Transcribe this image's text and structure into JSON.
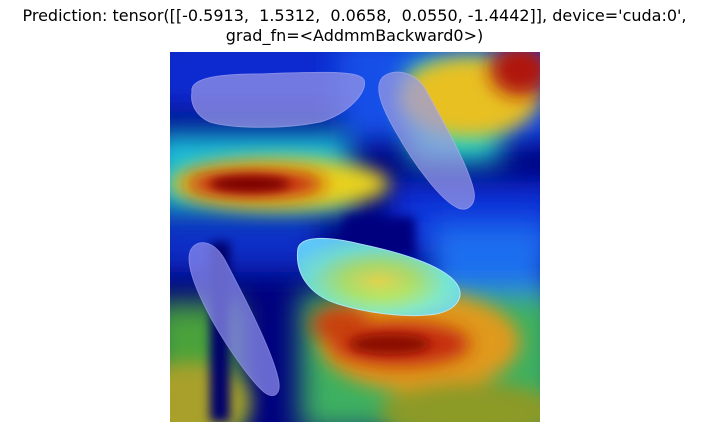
{
  "figure": {
    "title_line1": "Prediction: tensor([[-0.5913,  1.5312,  0.0658,  0.0550, -1.4442]], device='cuda:0',",
    "title_line2": "grad_fn=<AddmmBackward0>)"
  },
  "image": {
    "content": "Grad-CAM heatmap overlay on rice grains",
    "colormap": "jet"
  }
}
